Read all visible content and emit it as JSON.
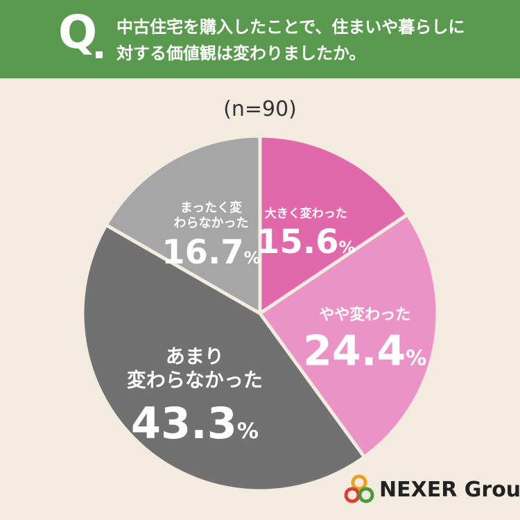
{
  "header": {
    "q_label": "Q",
    "question": "中古住宅を購入したことで、住まいや暮らしに\n対する価値観は変わりましたか。"
  },
  "sample_size": "(n=90)",
  "brand": {
    "name": "NEXER Group"
  },
  "colors": {
    "header_bg": "#5a9a4f",
    "page_bg": "#f3ebe0",
    "greatly_changed": "#e268ac",
    "somewhat_changed": "#eb93c6",
    "not_much": "#717171",
    "not_at_all": "#a6a6a6"
  },
  "chart_data": {
    "type": "pie",
    "title": "中古住宅を購入したことで、住まいや暮らしに対する価値観は変わりましたか。",
    "n": 90,
    "slices": [
      {
        "label": "大きく変わった",
        "value": 15.6,
        "display": "15.6",
        "color": "#e268ac"
      },
      {
        "label": "やや変わった",
        "value": 24.4,
        "display": "24.4",
        "color": "#eb93c6"
      },
      {
        "label": "あまり変わらなかった",
        "value": 43.3,
        "display": "43.3",
        "color": "#717171"
      },
      {
        "label": "まったく変わらなかった",
        "value": 16.7,
        "display": "16.7",
        "color": "#a6a6a6"
      }
    ],
    "unit": "%"
  }
}
